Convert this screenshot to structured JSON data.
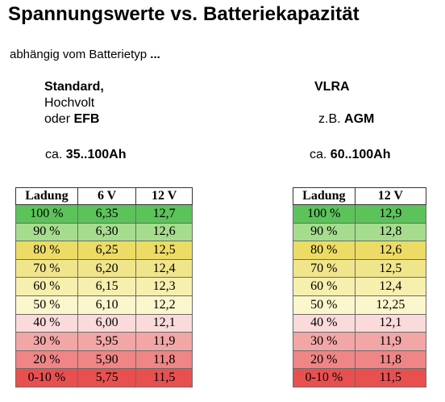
{
  "title": "Spannungswerte vs. Batteriekapazität",
  "subtitle": {
    "text": "abhängig vom Batterietyp ",
    "bold_tail": "..."
  },
  "left": {
    "line1": "Standard,",
    "line2": "Hochvolt",
    "line3_prefix": "oder ",
    "line3_bold": "EFB",
    "cap_prefix": "ca. ",
    "cap_bold": "35..100Ah"
  },
  "right": {
    "line1": "VLRA",
    "line3_prefix": "z.B. ",
    "line3_bold": "AGM",
    "cap_prefix": "ca. ",
    "cap_bold": "60..100Ah"
  },
  "table_left": {
    "headers": [
      "Ladung",
      "6 V",
      "12 V"
    ],
    "rows": [
      [
        "100 %",
        "6,35",
        "12,7"
      ],
      [
        "90 %",
        "6,30",
        "12,6"
      ],
      [
        "80 %",
        "6,25",
        "12,5"
      ],
      [
        "70 %",
        "6,20",
        "12,4"
      ],
      [
        "60 %",
        "6,15",
        "12,3"
      ],
      [
        "50 %",
        "6,10",
        "12,2"
      ],
      [
        "40 %",
        "6,00",
        "12,1"
      ],
      [
        "30 %",
        "5,95",
        "11,9"
      ],
      [
        "20 %",
        "5,90",
        "11,8"
      ],
      [
        "0-10 %",
        "5,75",
        "11,5"
      ]
    ]
  },
  "table_right": {
    "headers": [
      "Ladung",
      "12 V"
    ],
    "rows": [
      [
        "100 %",
        "12,9"
      ],
      [
        "90 %",
        "12,8"
      ],
      [
        "80 %",
        "12,6"
      ],
      [
        "70 %",
        "12,5"
      ],
      [
        "60 %",
        "12,4"
      ],
      [
        "50 %",
        "12,25"
      ],
      [
        "40 %",
        "12,1"
      ],
      [
        "30 %",
        "11,9"
      ],
      [
        "20 %",
        "11,8"
      ],
      [
        "0-10 %",
        "11,5"
      ]
    ]
  },
  "row_colors": [
    "#5cc35a",
    "#a6dc8e",
    "#ecdc66",
    "#f1e58c",
    "#f6efae",
    "#fbf6cc",
    "#fadada",
    "#f3a6a6",
    "#ef8585",
    "#e85050"
  ]
}
